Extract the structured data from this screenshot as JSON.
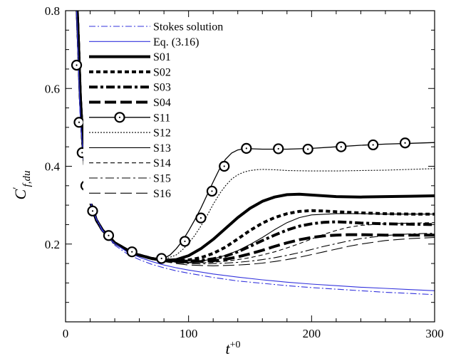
{
  "chart_data": {
    "type": "line",
    "xlabel": "t",
    "xlabel_sup": "+0",
    "ylabel": "C",
    "ylabel_sup": "′",
    "ylabel_sub": "f,du",
    "xlim": [
      0,
      300
    ],
    "ylim": [
      0,
      0.8
    ],
    "x_ticks": [
      0,
      100,
      200,
      300
    ],
    "x_tick_labels": [
      "0",
      "100",
      "200",
      "300"
    ],
    "y_ticks": [
      0.2,
      0.4,
      0.6,
      0.8
    ],
    "y_tick_labels": [
      "0.2",
      "0.4",
      "0.6",
      "0.8"
    ],
    "grid": false,
    "legend_position": "top-left",
    "series": [
      {
        "name": "Stokes solution",
        "color": "#3333dd",
        "style": "dashdot",
        "x": [
          9,
          12,
          16,
          20,
          25,
          30,
          35,
          40,
          50,
          60,
          70,
          80,
          90,
          100,
          120,
          140,
          160,
          180,
          200,
          220,
          240,
          260,
          280,
          300
        ],
        "y": [
          0.8,
          0.52,
          0.37,
          0.31,
          0.263,
          0.233,
          0.213,
          0.197,
          0.175,
          0.16,
          0.148,
          0.139,
          0.131,
          0.125,
          0.114,
          0.105,
          0.099,
          0.093,
          0.088,
          0.084,
          0.08,
          0.076,
          0.073,
          0.07
        ]
      },
      {
        "name": "Eq. (3.16)",
        "color": "#3333dd",
        "style": "solid",
        "x": [
          9,
          12,
          16,
          20,
          25,
          30,
          35,
          40,
          50,
          60,
          70,
          80,
          90,
          100,
          120,
          140,
          160,
          180,
          200,
          220,
          240,
          260,
          280,
          300
        ],
        "y": [
          0.8,
          0.52,
          0.37,
          0.31,
          0.265,
          0.236,
          0.216,
          0.201,
          0.18,
          0.166,
          0.155,
          0.146,
          0.139,
          0.133,
          0.123,
          0.115,
          0.108,
          0.102,
          0.097,
          0.093,
          0.089,
          0.086,
          0.083,
          0.08
        ]
      },
      {
        "name": "S01",
        "color": "#000000",
        "style": "thick",
        "x": [
          8.5,
          9.5,
          10.5,
          12,
          14,
          16,
          20,
          25,
          30,
          40,
          55,
          70,
          80,
          90,
          100,
          110,
          120,
          130,
          140,
          150,
          160,
          170,
          180,
          190,
          200,
          220,
          240,
          260,
          280,
          300
        ],
        "y": [
          0.9,
          0.8,
          0.72,
          0.58,
          0.46,
          0.39,
          0.31,
          0.262,
          0.236,
          0.203,
          0.176,
          0.163,
          0.158,
          0.16,
          0.17,
          0.188,
          0.212,
          0.24,
          0.268,
          0.292,
          0.31,
          0.321,
          0.327,
          0.328,
          0.326,
          0.322,
          0.321,
          0.322,
          0.323,
          0.324
        ]
      },
      {
        "name": "S02",
        "color": "#000000",
        "style": "thickdash",
        "x": [
          8.5,
          9.5,
          10.5,
          12,
          14,
          16,
          20,
          25,
          30,
          40,
          55,
          70,
          80,
          90,
          100,
          110,
          120,
          130,
          140,
          150,
          160,
          170,
          180,
          190,
          200,
          210,
          220,
          240,
          260,
          280,
          300
        ],
        "y": [
          0.9,
          0.8,
          0.72,
          0.58,
          0.46,
          0.39,
          0.31,
          0.262,
          0.236,
          0.203,
          0.176,
          0.163,
          0.158,
          0.157,
          0.159,
          0.165,
          0.176,
          0.192,
          0.213,
          0.235,
          0.254,
          0.268,
          0.278,
          0.284,
          0.286,
          0.285,
          0.283,
          0.28,
          0.278,
          0.277,
          0.277
        ]
      },
      {
        "name": "S03",
        "color": "#000000",
        "style": "thickdashdot",
        "x": [
          8.5,
          9.5,
          10.5,
          12,
          14,
          16,
          20,
          25,
          30,
          40,
          55,
          70,
          80,
          90,
          100,
          110,
          120,
          130,
          140,
          150,
          160,
          170,
          180,
          190,
          200,
          210,
          220,
          230,
          240,
          260,
          280,
          300
        ],
        "y": [
          0.9,
          0.8,
          0.72,
          0.58,
          0.46,
          0.39,
          0.31,
          0.262,
          0.236,
          0.203,
          0.176,
          0.163,
          0.158,
          0.156,
          0.156,
          0.158,
          0.162,
          0.169,
          0.18,
          0.194,
          0.209,
          0.223,
          0.236,
          0.246,
          0.252,
          0.256,
          0.257,
          0.256,
          0.254,
          0.252,
          0.251,
          0.25
        ]
      },
      {
        "name": "S04",
        "color": "#000000",
        "style": "thicklongdash",
        "x": [
          8.5,
          9.5,
          10.5,
          12,
          14,
          16,
          20,
          25,
          30,
          40,
          55,
          70,
          80,
          90,
          100,
          110,
          120,
          130,
          140,
          150,
          160,
          170,
          180,
          190,
          200,
          210,
          220,
          230,
          240,
          260,
          280,
          300
        ],
        "y": [
          0.9,
          0.8,
          0.72,
          0.58,
          0.46,
          0.39,
          0.31,
          0.262,
          0.236,
          0.203,
          0.176,
          0.163,
          0.158,
          0.155,
          0.154,
          0.155,
          0.157,
          0.161,
          0.167,
          0.175,
          0.184,
          0.194,
          0.203,
          0.211,
          0.217,
          0.221,
          0.223,
          0.224,
          0.224,
          0.223,
          0.223,
          0.223
        ]
      },
      {
        "name": "S11",
        "color": "#000000",
        "style": "solid-circle",
        "x": [
          8.5,
          9.5,
          10.5,
          12,
          14,
          16,
          20,
          25,
          30,
          40,
          55,
          70,
          80,
          85,
          90,
          95,
          100,
          105,
          110,
          115,
          120,
          125,
          130,
          135,
          140,
          145,
          150,
          160,
          170,
          180,
          200,
          220,
          240,
          260,
          280,
          300
        ],
        "y": [
          0.9,
          0.8,
          0.72,
          0.58,
          0.46,
          0.39,
          0.31,
          0.262,
          0.236,
          0.203,
          0.176,
          0.163,
          0.163,
          0.172,
          0.188,
          0.208,
          0.234,
          0.262,
          0.292,
          0.326,
          0.36,
          0.392,
          0.418,
          0.434,
          0.442,
          0.445,
          0.445,
          0.444,
          0.444,
          0.444,
          0.446,
          0.45,
          0.454,
          0.457,
          0.459,
          0.461
        ]
      },
      {
        "name": "S12",
        "color": "#000000",
        "style": "dotted",
        "x": [
          8.5,
          9.5,
          10.5,
          12,
          14,
          16,
          20,
          25,
          30,
          40,
          55,
          70,
          80,
          90,
          95,
          100,
          105,
          110,
          115,
          120,
          125,
          130,
          135,
          140,
          145,
          150,
          155,
          160,
          170,
          180,
          200,
          220,
          240,
          260,
          280,
          300
        ],
        "y": [
          0.9,
          0.8,
          0.72,
          0.58,
          0.46,
          0.39,
          0.31,
          0.262,
          0.236,
          0.203,
          0.176,
          0.163,
          0.16,
          0.172,
          0.185,
          0.202,
          0.222,
          0.246,
          0.273,
          0.302,
          0.328,
          0.35,
          0.367,
          0.378,
          0.385,
          0.389,
          0.391,
          0.392,
          0.391,
          0.389,
          0.388,
          0.388,
          0.389,
          0.39,
          0.392,
          0.394
        ]
      },
      {
        "name": "S13",
        "color": "#000000",
        "style": "thin",
        "x": [
          8.5,
          9.5,
          10.5,
          12,
          14,
          16,
          20,
          25,
          30,
          40,
          55,
          70,
          80,
          90,
          100,
          110,
          120,
          130,
          140,
          150,
          160,
          170,
          180,
          190,
          200,
          220,
          240,
          260,
          280,
          300
        ],
        "y": [
          0.9,
          0.8,
          0.72,
          0.58,
          0.46,
          0.39,
          0.31,
          0.262,
          0.236,
          0.203,
          0.176,
          0.163,
          0.157,
          0.154,
          0.153,
          0.156,
          0.162,
          0.171,
          0.183,
          0.199,
          0.217,
          0.237,
          0.255,
          0.268,
          0.275,
          0.278,
          0.278,
          0.277,
          0.277,
          0.277
        ]
      },
      {
        "name": "S14",
        "color": "#000000",
        "style": "thindash",
        "x": [
          8.5,
          9.5,
          10.5,
          12,
          14,
          16,
          20,
          25,
          30,
          40,
          55,
          70,
          80,
          90,
          100,
          110,
          120,
          130,
          140,
          150,
          160,
          170,
          180,
          190,
          200,
          210,
          220,
          230,
          240,
          260,
          280,
          300
        ],
        "y": [
          0.9,
          0.8,
          0.72,
          0.58,
          0.46,
          0.39,
          0.31,
          0.262,
          0.236,
          0.203,
          0.176,
          0.163,
          0.157,
          0.154,
          0.152,
          0.152,
          0.153,
          0.156,
          0.16,
          0.165,
          0.172,
          0.18,
          0.19,
          0.201,
          0.213,
          0.225,
          0.235,
          0.243,
          0.248,
          0.252,
          0.254,
          0.255
        ]
      },
      {
        "name": "S15",
        "color": "#000000",
        "style": "thindashdot",
        "x": [
          8.5,
          9.5,
          10.5,
          12,
          14,
          16,
          20,
          25,
          30,
          40,
          55,
          70,
          80,
          90,
          100,
          110,
          120,
          130,
          140,
          150,
          160,
          170,
          180,
          190,
          200,
          210,
          220,
          230,
          240,
          260,
          280,
          300
        ],
        "y": [
          0.9,
          0.8,
          0.72,
          0.58,
          0.46,
          0.39,
          0.31,
          0.262,
          0.236,
          0.203,
          0.176,
          0.163,
          0.156,
          0.152,
          0.15,
          0.149,
          0.15,
          0.151,
          0.153,
          0.156,
          0.16,
          0.165,
          0.171,
          0.178,
          0.186,
          0.194,
          0.201,
          0.208,
          0.214,
          0.222,
          0.226,
          0.228
        ]
      },
      {
        "name": "S16",
        "color": "#000000",
        "style": "thinlongdash",
        "x": [
          8.5,
          9.5,
          10.5,
          12,
          14,
          16,
          20,
          25,
          30,
          40,
          55,
          70,
          80,
          90,
          100,
          110,
          120,
          130,
          140,
          150,
          160,
          170,
          180,
          190,
          200,
          210,
          220,
          230,
          240,
          260,
          280,
          300
        ],
        "y": [
          0.9,
          0.8,
          0.72,
          0.58,
          0.46,
          0.39,
          0.31,
          0.262,
          0.236,
          0.203,
          0.176,
          0.163,
          0.155,
          0.15,
          0.146,
          0.145,
          0.144,
          0.145,
          0.146,
          0.148,
          0.151,
          0.155,
          0.16,
          0.166,
          0.173,
          0.18,
          0.187,
          0.194,
          0.2,
          0.209,
          0.214,
          0.217
        ]
      }
    ],
    "marker_series": {
      "name": "S11",
      "x": [
        9,
        11,
        13.5,
        16.5,
        22,
        35,
        54,
        78,
        97,
        110,
        119,
        129,
        147,
        173,
        197,
        224,
        250,
        276,
        305
      ],
      "y": [
        0.66,
        0.513,
        0.435,
        0.35,
        0.285,
        0.222,
        0.18,
        0.163,
        0.207,
        0.267,
        0.336,
        0.4,
        0.446,
        0.445,
        0.444,
        0.45,
        0.455,
        0.46,
        0.462
      ]
    }
  }
}
